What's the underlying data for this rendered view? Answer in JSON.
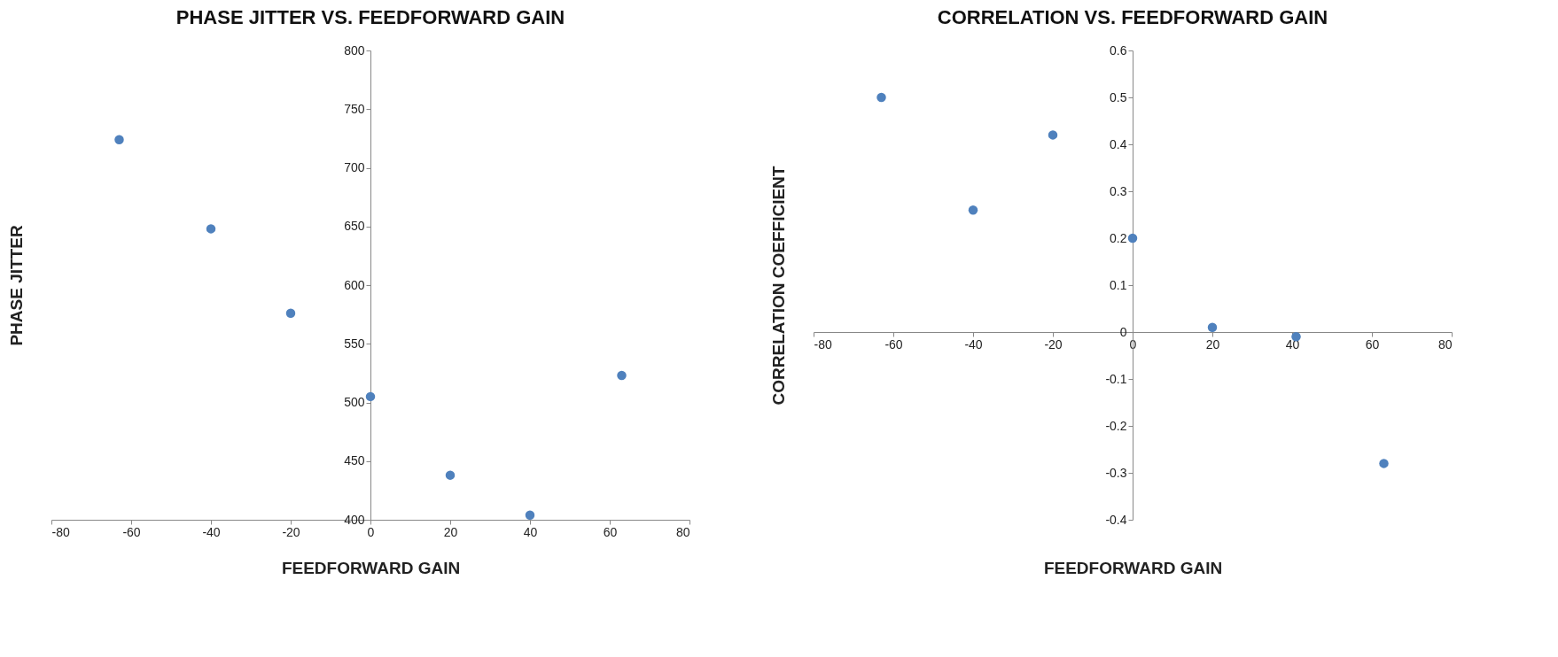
{
  "chart_data": [
    {
      "type": "scatter",
      "title": "PHASE JITTER VS. FEEDFORWARD GAIN",
      "xlabel": "FEEDFORWARD GAIN",
      "ylabel": "PHASE JITTER",
      "x": [
        -63,
        -40,
        -20,
        0,
        20,
        40,
        63
      ],
      "series": [
        {
          "color": "#4f81bd",
          "values": [
            724,
            648,
            576,
            505,
            438,
            404,
            523
          ]
        }
      ],
      "xlim": [
        -80,
        80
      ],
      "xticks": [
        -80,
        -60,
        -40,
        -20,
        0,
        20,
        40,
        60,
        80
      ],
      "ylim": [
        400,
        800
      ],
      "yticks": [
        400,
        450,
        500,
        550,
        600,
        650,
        700,
        750,
        800
      ],
      "grid": false,
      "marker": "circle"
    },
    {
      "type": "scatter",
      "title": "CORRELATION VS. FEEDFORWARD GAIN",
      "xlabel": "FEEDFORWARD GAIN",
      "ylabel": "CORRELATION  COEFFICIENT",
      "x": [
        -63,
        -40,
        -20,
        0,
        20,
        41,
        63
      ],
      "series": [
        {
          "color": "#4f81bd",
          "values": [
            0.5,
            0.26,
            0.42,
            0.2,
            0.01,
            -0.01,
            -0.28
          ]
        }
      ],
      "xlim": [
        -80,
        80
      ],
      "xticks": [
        -80,
        -60,
        -40,
        -20,
        0,
        20,
        40,
        60,
        80
      ],
      "ylim": [
        -0.4,
        0.6
      ],
      "yticks": [
        -0.4,
        -0.3,
        -0.2,
        -0.1,
        0,
        0.1,
        0.2,
        0.3,
        0.4,
        0.5,
        0.6
      ],
      "grid": false,
      "marker": "circle"
    }
  ]
}
